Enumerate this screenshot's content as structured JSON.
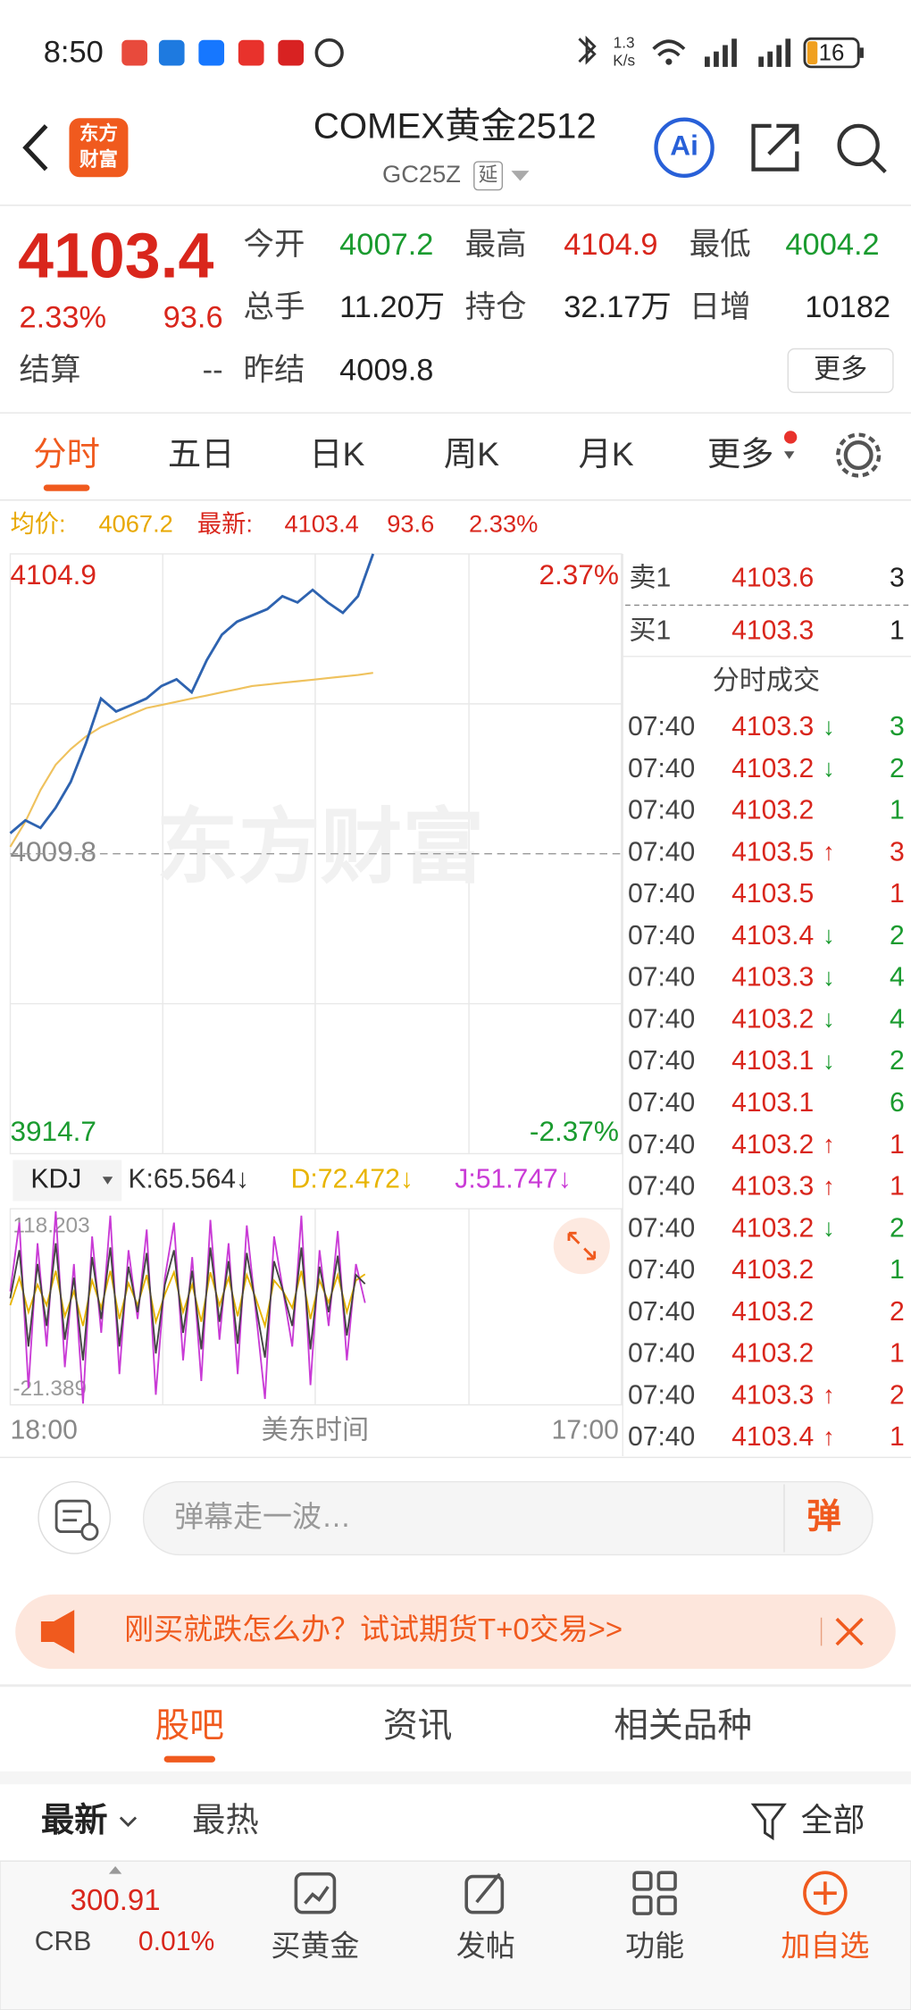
{
  "status_bar": {
    "time": "8:50",
    "net_speed_value": "1.3",
    "net_speed_unit": "K/s",
    "battery": "16"
  },
  "header": {
    "logo": [
      "东方",
      "财富"
    ],
    "title": "COMEX黄金2512",
    "code": "GC25Z",
    "tag": "延",
    "ai": "Ai"
  },
  "quote": {
    "price": "4103.4",
    "change_pct": "2.33%",
    "change": "93.6",
    "settle_label": "结算",
    "settle": "--",
    "more": "更多",
    "fields": [
      {
        "label": "今开",
        "value": "4007.2",
        "color": "#1a9b2f"
      },
      {
        "label": "最高",
        "value": "4104.9",
        "color": "#d9261c"
      },
      {
        "label": "最低",
        "value": "4004.2",
        "color": "#1a9b2f"
      },
      {
        "label": "总手",
        "value": "11.20万",
        "color": "#222222"
      },
      {
        "label": "持仓",
        "value": "32.17万",
        "color": "#222222"
      },
      {
        "label": "日增",
        "value": "10182",
        "color": "#222222"
      },
      {
        "label": "昨结",
        "value": "4009.8",
        "color": "#222222"
      }
    ]
  },
  "tabs": {
    "items": [
      "分时",
      "五日",
      "日K",
      "周K",
      "月K",
      "更多"
    ],
    "active": 0
  },
  "summary": {
    "avg_label": "均价:",
    "avg": "4067.2",
    "last_label": "最新:",
    "last": "4103.4",
    "change": "93.6",
    "pct": "2.33%"
  },
  "chart": {
    "ylim": [
      3914.7,
      4104.9
    ],
    "yticks": [
      3914.7,
      4009.8,
      4104.9
    ],
    "y2lim": [
      -2.37,
      2.37
    ],
    "y2ticks": [
      {
        "value": -2.37,
        "label": "-2.37%"
      },
      {
        "value": 2.37,
        "label": "2.37%"
      }
    ],
    "x_labels": [
      "18:00",
      "17:00"
    ],
    "x_title": "美东时间",
    "watermark": "东方财富",
    "price": {
      "color": "#2e63b0",
      "values": [
        4016.3,
        4020.4,
        4018.0,
        4024.4,
        4032.6,
        4044.8,
        4059.0,
        4054.9,
        4056.9,
        4059.0,
        4063.0,
        4065.1,
        4061.0,
        4071.2,
        4079.3,
        4083.4,
        4085.4,
        4087.4,
        4091.5,
        4089.5,
        4093.5,
        4089.5,
        4086.2,
        4091.5,
        4104.9
      ]
    },
    "avg": {
      "color": "#efc25e",
      "values": [
        4012.0,
        4020.0,
        4030.0,
        4038.0,
        4043.0,
        4047.0,
        4050.0,
        4052.0,
        4054.0,
        4056.0,
        4057.0,
        4058.0,
        4059.0,
        4060.0,
        4061.0,
        4062.0,
        4063.0,
        4063.5,
        4064.0,
        4064.5,
        4065.0,
        4065.5,
        4066.0,
        4066.5,
        4067.2
      ]
    }
  },
  "kdj": {
    "label": "KDJ",
    "ylim": [
      -21.389,
      118.203
    ],
    "legend": [
      {
        "text": "K:65.564↓",
        "color": "#333333"
      },
      {
        "text": "D:72.472↓",
        "color": "#e8b400"
      },
      {
        "text": "J:51.747↓",
        "color": "#c93bd6"
      }
    ],
    "series": [
      {
        "color": "#c93bd6",
        "values": [
          60,
          110,
          -10,
          95,
          20,
          118.203,
          5,
          80,
          -21.389,
          100,
          30,
          115,
          0,
          90,
          40,
          105,
          -15,
          70,
          110,
          10,
          85,
          -5,
          112,
          25,
          95,
          0,
          108,
          45,
          -18,
          100,
          60,
          20,
          115,
          -8,
          90,
          35,
          104,
          10,
          80,
          51.747
        ]
      },
      {
        "color": "#e8b400",
        "values": [
          50,
          70,
          45,
          65,
          50,
          75,
          42,
          60,
          35,
          68,
          48,
          75,
          40,
          66,
          50,
          72,
          38,
          58,
          74,
          45,
          65,
          38,
          74,
          50,
          70,
          42,
          72,
          55,
          35,
          68,
          60,
          48,
          75,
          40,
          68,
          52,
          72,
          45,
          68,
          72.472
        ]
      },
      {
        "color": "#444444",
        "values": [
          55,
          90,
          20,
          80,
          35,
          95,
          25,
          70,
          10,
          85,
          40,
          92,
          20,
          78,
          45,
          88,
          15,
          65,
          90,
          30,
          75,
          18,
          92,
          38,
          82,
          22,
          88,
          50,
          12,
          82,
          60,
          35,
          92,
          18,
          78,
          45,
          86,
          28,
          72,
          65.564
        ]
      }
    ]
  },
  "order_book": {
    "asks": [
      {
        "label": "卖1",
        "price": "4103.6",
        "volume": "3"
      }
    ],
    "bids": [
      {
        "label": "买1",
        "price": "4103.3",
        "volume": "1"
      }
    ],
    "trades_title": "分时成交",
    "trades": [
      {
        "time": "07:40",
        "price": "4103.3",
        "arrow": "↓",
        "volume": "3",
        "color": "#1a9b2f"
      },
      {
        "time": "07:40",
        "price": "4103.2",
        "arrow": "↓",
        "volume": "2",
        "color": "#1a9b2f"
      },
      {
        "time": "07:40",
        "price": "4103.2",
        "volume": "1",
        "color": "#1a9b2f"
      },
      {
        "time": "07:40",
        "price": "4103.5",
        "arrow": "↑",
        "volume": "3",
        "color": "#d9261c"
      },
      {
        "time": "07:40",
        "price": "4103.5",
        "volume": "1",
        "color": "#d9261c"
      },
      {
        "time": "07:40",
        "price": "4103.4",
        "arrow": "↓",
        "volume": "2",
        "color": "#1a9b2f"
      },
      {
        "time": "07:40",
        "price": "4103.3",
        "arrow": "↓",
        "volume": "4",
        "color": "#1a9b2f"
      },
      {
        "time": "07:40",
        "price": "4103.2",
        "arrow": "↓",
        "volume": "4",
        "color": "#1a9b2f"
      },
      {
        "time": "07:40",
        "price": "4103.1",
        "arrow": "↓",
        "volume": "2",
        "color": "#1a9b2f"
      },
      {
        "time": "07:40",
        "price": "4103.1",
        "volume": "6",
        "color": "#1a9b2f"
      },
      {
        "time": "07:40",
        "price": "4103.2",
        "arrow": "↑",
        "volume": "1",
        "color": "#d9261c"
      },
      {
        "time": "07:40",
        "price": "4103.3",
        "arrow": "↑",
        "volume": "1",
        "color": "#d9261c"
      },
      {
        "time": "07:40",
        "price": "4103.2",
        "arrow": "↓",
        "volume": "2",
        "color": "#1a9b2f"
      },
      {
        "time": "07:40",
        "price": "4103.2",
        "volume": "1",
        "color": "#1a9b2f"
      },
      {
        "time": "07:40",
        "price": "4103.2",
        "volume": "2",
        "color": "#d9261c"
      },
      {
        "time": "07:40",
        "price": "4103.2",
        "volume": "1",
        "color": "#d9261c"
      },
      {
        "time": "07:40",
        "price": "4103.3",
        "arrow": "↑",
        "volume": "2",
        "color": "#d9261c"
      },
      {
        "time": "07:40",
        "price": "4103.4",
        "arrow": "↑",
        "volume": "1",
        "color": "#d9261c"
      }
    ]
  },
  "comment": {
    "placeholder": "弹幕走一波…",
    "button": "弹"
  },
  "banner": {
    "text": "刚买就跌怎么办？试试期货T+0交易>>"
  },
  "section_tabs": {
    "items": [
      "股吧",
      "资讯",
      "相关品种"
    ],
    "active": 0
  },
  "sort": {
    "items": [
      "最新",
      "最热"
    ],
    "filter": "全部"
  },
  "bottom_bar": {
    "index_value": "300.91",
    "index_name": "CRB",
    "index_pct": "0.01%",
    "actions": [
      "买黄金",
      "发帖",
      "功能",
      "加自选"
    ]
  }
}
